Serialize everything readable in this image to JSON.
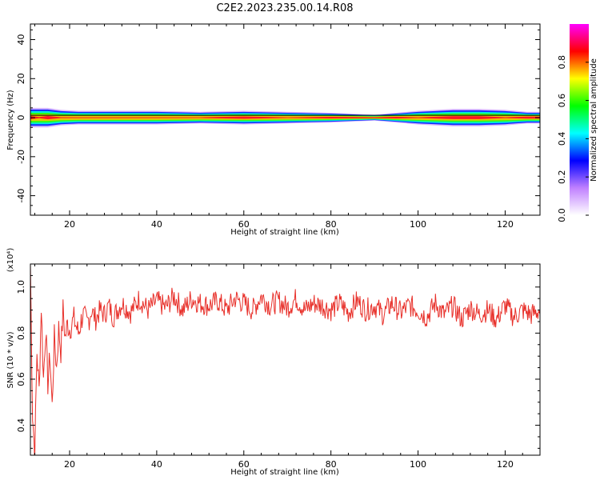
{
  "title": "C2E2.2023.235.00.14.R08",
  "chart_data": [
    {
      "type": "heatmap",
      "xlabel": "Height of straight line (km)",
      "ylabel": "Frequency (Hz)",
      "xlim": [
        11,
        128
      ],
      "ylim": [
        -50,
        48
      ],
      "xticks": [
        20,
        40,
        60,
        80,
        100,
        120
      ],
      "yticks": [
        -40,
        -20,
        0,
        20,
        40
      ],
      "grid": false,
      "colorbar": {
        "label": "Normalized spectral amplitude",
        "range": [
          0,
          1
        ],
        "ticks": [
          0.0,
          0.2,
          0.4,
          0.6,
          0.8
        ],
        "colors": [
          "#ffffff",
          "#c080ff",
          "#0000ff",
          "#00ffff",
          "#00ff00",
          "#ffff00",
          "#ff0000",
          "#ff00ff"
        ]
      },
      "band_frequency_hz": 0,
      "band_profile": [
        {
          "x": 11,
          "amplitude": 0.9,
          "halfwidth_hz": 5
        },
        {
          "x": 13,
          "amplitude": 0.85,
          "halfwidth_hz": 5
        },
        {
          "x": 15,
          "amplitude": 0.95,
          "halfwidth_hz": 5
        },
        {
          "x": 18,
          "amplitude": 0.85,
          "halfwidth_hz": 4
        },
        {
          "x": 22,
          "amplitude": 0.75,
          "halfwidth_hz": 3.5
        },
        {
          "x": 30,
          "amplitude": 0.8,
          "halfwidth_hz": 3.5
        },
        {
          "x": 40,
          "amplitude": 0.8,
          "halfwidth_hz": 3.5
        },
        {
          "x": 50,
          "amplitude": 0.85,
          "halfwidth_hz": 3
        },
        {
          "x": 60,
          "amplitude": 0.9,
          "halfwidth_hz": 3.5
        },
        {
          "x": 70,
          "amplitude": 0.85,
          "halfwidth_hz": 3
        },
        {
          "x": 80,
          "amplitude": 0.9,
          "halfwidth_hz": 2.5
        },
        {
          "x": 90,
          "amplitude": 0.9,
          "halfwidth_hz": 1.5
        },
        {
          "x": 95,
          "amplitude": 0.9,
          "halfwidth_hz": 2.5
        },
        {
          "x": 100,
          "amplitude": 0.85,
          "halfwidth_hz": 3.5
        },
        {
          "x": 108,
          "amplitude": 0.9,
          "halfwidth_hz": 4.5
        },
        {
          "x": 114,
          "amplitude": 0.9,
          "halfwidth_hz": 4.5
        },
        {
          "x": 120,
          "amplitude": 0.85,
          "halfwidth_hz": 4
        },
        {
          "x": 125,
          "amplitude": 0.9,
          "halfwidth_hz": 3
        },
        {
          "x": 128,
          "amplitude": 0.9,
          "halfwidth_hz": 3
        }
      ]
    },
    {
      "type": "line",
      "xlabel": "Height of straight line (km)",
      "ylabel": "SNR (10 * v/v)",
      "y_multiplier_label": "(x10⁴)",
      "xlim": [
        11,
        128
      ],
      "ylim": [
        0.27,
        1.1
      ],
      "xticks": [
        20,
        40,
        60,
        80,
        100,
        120
      ],
      "yticks": [
        0.4,
        0.6,
        0.8,
        1.0
      ],
      "grid": false,
      "color": "#e8302a",
      "series": [
        {
          "x": [
            11,
            11.5,
            12,
            12.5,
            13,
            13.5,
            14,
            14.5,
            15,
            15.5,
            16,
            16.5,
            17,
            17.5,
            18,
            18.5,
            19,
            19.5,
            20,
            21,
            22,
            23,
            24,
            25,
            26,
            27,
            28,
            29,
            30,
            32,
            34,
            36,
            38,
            40,
            42,
            44,
            46,
            48,
            50,
            52,
            54,
            56,
            58,
            60,
            62,
            64,
            66,
            68,
            70,
            72,
            74,
            76,
            78,
            80,
            82,
            84,
            86,
            88,
            90,
            92,
            94,
            96,
            98,
            100,
            102,
            104,
            106,
            108,
            110,
            112,
            114,
            116,
            118,
            120,
            122,
            124,
            126,
            128
          ],
          "values": [
            1.1,
            0.45,
            0.28,
            0.72,
            0.55,
            0.92,
            0.6,
            0.82,
            0.58,
            0.7,
            0.48,
            0.78,
            0.65,
            0.82,
            0.72,
            0.9,
            0.78,
            0.84,
            0.82,
            0.86,
            0.8,
            0.88,
            0.84,
            0.9,
            0.86,
            0.9,
            0.88,
            0.92,
            0.87,
            0.93,
            0.89,
            0.95,
            0.9,
            0.94,
            0.91,
            0.96,
            0.9,
            0.95,
            0.93,
            0.92,
            0.94,
            0.9,
            0.95,
            0.93,
            0.9,
            0.96,
            0.92,
            0.94,
            0.91,
            0.95,
            0.9,
            0.93,
            0.92,
            0.9,
            0.93,
            0.89,
            0.94,
            0.9,
            0.92,
            0.88,
            0.93,
            0.89,
            0.92,
            0.9,
            0.87,
            0.93,
            0.88,
            0.92,
            0.86,
            0.91,
            0.88,
            0.9,
            0.86,
            0.92,
            0.87,
            0.9,
            0.88,
            0.9
          ]
        }
      ]
    }
  ]
}
